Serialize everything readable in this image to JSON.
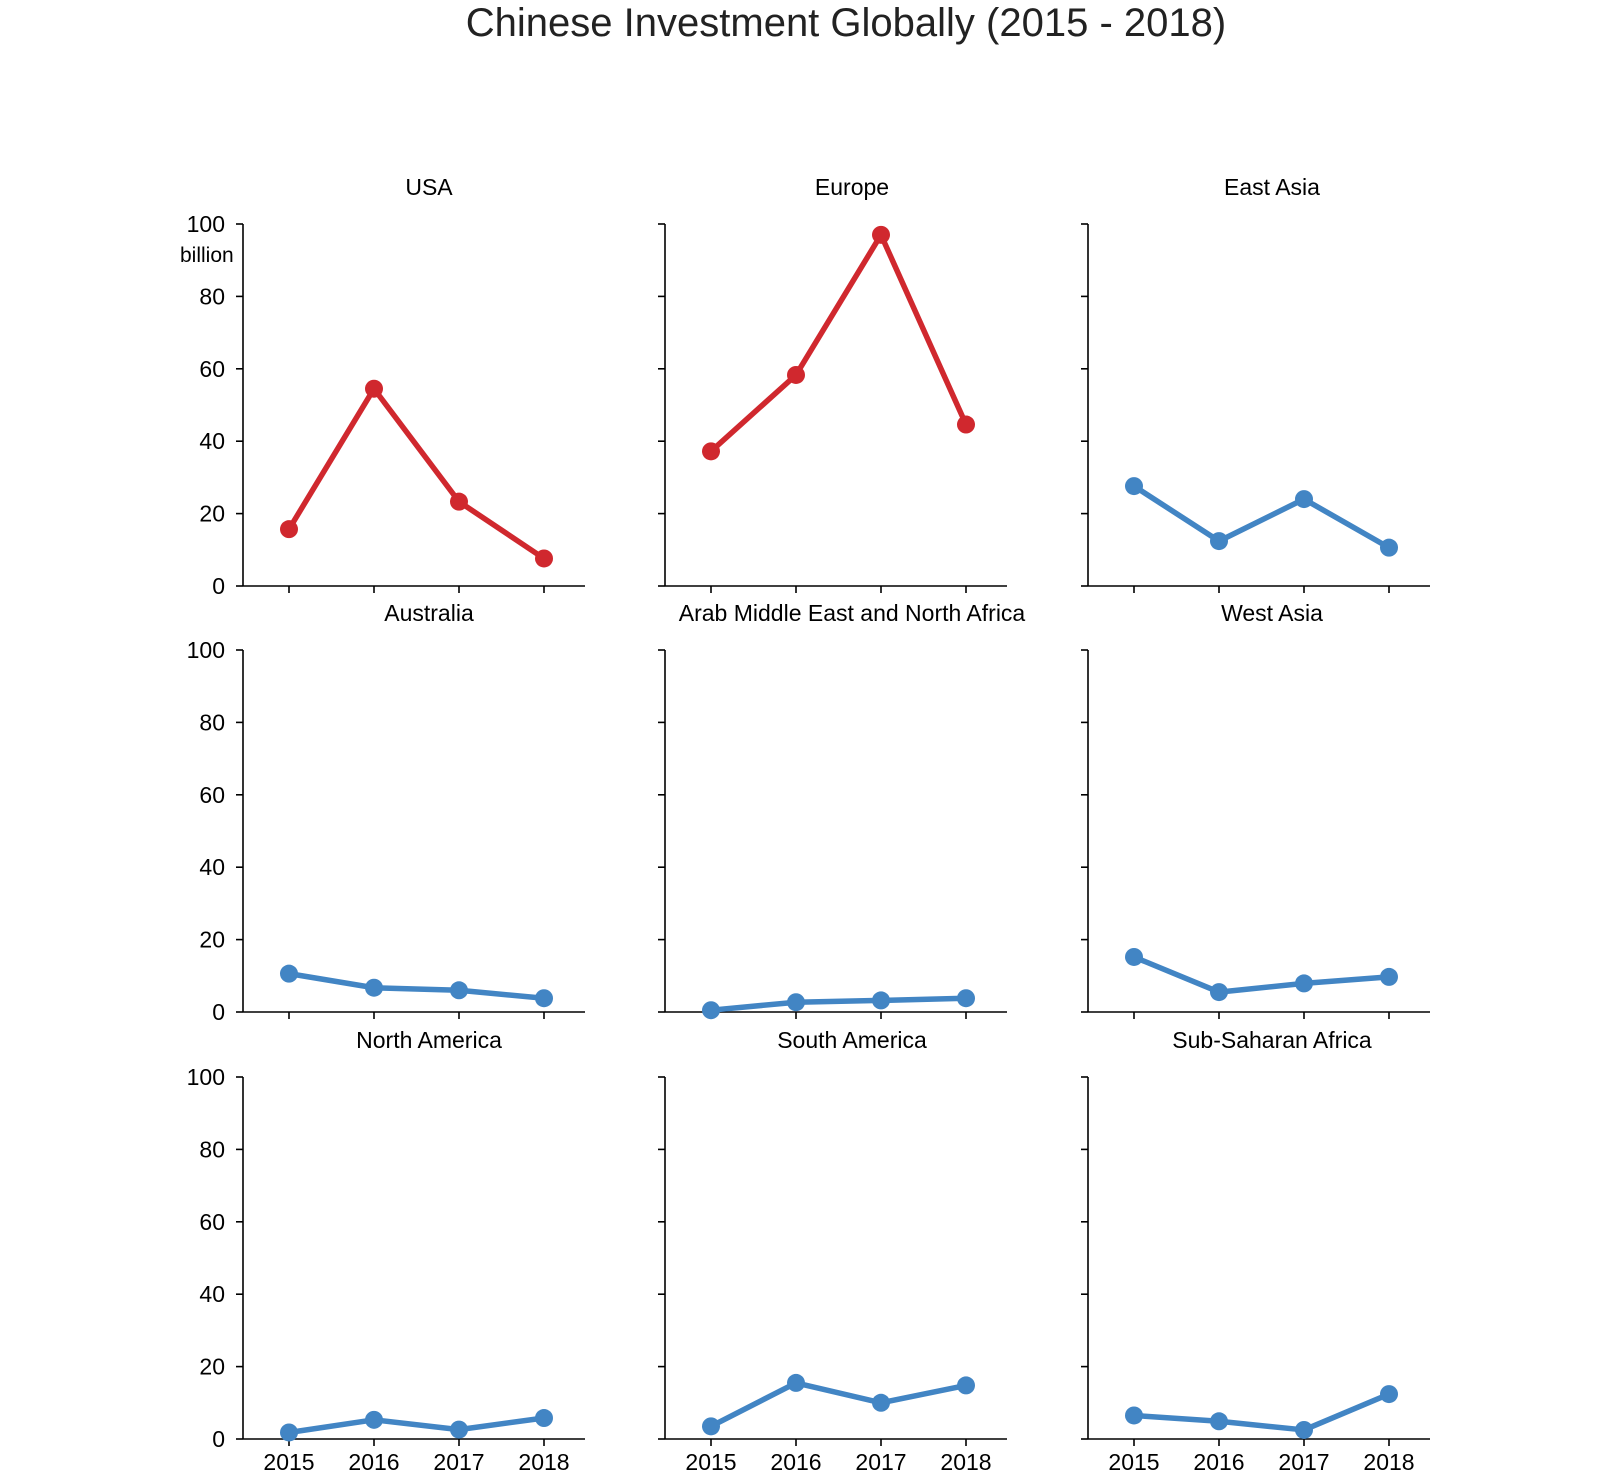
{
  "title": "Chinese Investment Globally (2015 - 2018)",
  "unit_label": "billion",
  "colors": {
    "highlight": "#d0282e",
    "default": "#4285c4",
    "title": "#222222"
  },
  "chart_data": [
    {
      "type": "line",
      "title": "USA",
      "x": [
        "2015",
        "2016",
        "2017",
        "2018"
      ],
      "series": [
        {
          "values": [
            15.7,
            54.5,
            23.3,
            7.6
          ]
        }
      ],
      "color": "#d0282e",
      "ylim": [
        0,
        100
      ],
      "yticks": [
        0,
        20,
        40,
        60,
        80,
        100
      ]
    },
    {
      "type": "line",
      "title": "Europe",
      "x": [
        "2015",
        "2016",
        "2017",
        "2018"
      ],
      "series": [
        {
          "values": [
            37.2,
            58.3,
            97.0,
            44.6
          ]
        }
      ],
      "color": "#d0282e",
      "ylim": [
        0,
        100
      ],
      "yticks": [
        0,
        20,
        40,
        60,
        80,
        100
      ]
    },
    {
      "type": "line",
      "title": "East Asia",
      "x": [
        "2015",
        "2016",
        "2017",
        "2018"
      ],
      "series": [
        {
          "values": [
            27.6,
            12.4,
            24.0,
            10.6
          ]
        }
      ],
      "color": "#4285c4",
      "ylim": [
        0,
        100
      ],
      "yticks": [
        0,
        20,
        40,
        60,
        80,
        100
      ]
    },
    {
      "type": "line",
      "title": "Australia",
      "x": [
        "2015",
        "2016",
        "2017",
        "2018"
      ],
      "series": [
        {
          "values": [
            10.6,
            6.7,
            6.0,
            3.8
          ]
        }
      ],
      "color": "#4285c4",
      "ylim": [
        0,
        100
      ],
      "yticks": [
        0,
        20,
        40,
        60,
        80,
        100
      ]
    },
    {
      "type": "line",
      "title": "Arab Middle East and North Africa",
      "x": [
        "2015",
        "2016",
        "2017",
        "2018"
      ],
      "series": [
        {
          "values": [
            0.5,
            2.7,
            3.2,
            3.8
          ]
        }
      ],
      "color": "#4285c4",
      "ylim": [
        0,
        100
      ],
      "yticks": [
        0,
        20,
        40,
        60,
        80,
        100
      ]
    },
    {
      "type": "line",
      "title": "West Asia",
      "x": [
        "2015",
        "2016",
        "2017",
        "2018"
      ],
      "series": [
        {
          "values": [
            15.2,
            5.5,
            7.9,
            9.7
          ]
        }
      ],
      "color": "#4285c4",
      "ylim": [
        0,
        100
      ],
      "yticks": [
        0,
        20,
        40,
        60,
        80,
        100
      ]
    },
    {
      "type": "line",
      "title": "North America",
      "x": [
        "2015",
        "2016",
        "2017",
        "2018"
      ],
      "series": [
        {
          "values": [
            1.8,
            5.3,
            2.6,
            5.8
          ]
        }
      ],
      "color": "#4285c4",
      "ylim": [
        0,
        100
      ],
      "yticks": [
        0,
        20,
        40,
        60,
        80,
        100
      ]
    },
    {
      "type": "line",
      "title": "South America",
      "x": [
        "2015",
        "2016",
        "2017",
        "2018"
      ],
      "series": [
        {
          "values": [
            3.5,
            15.5,
            10.0,
            14.8
          ]
        }
      ],
      "color": "#4285c4",
      "ylim": [
        0,
        100
      ],
      "yticks": [
        0,
        20,
        40,
        60,
        80,
        100
      ]
    },
    {
      "type": "line",
      "title": "Sub-Saharan Africa",
      "x": [
        "2015",
        "2016",
        "2017",
        "2018"
      ],
      "series": [
        {
          "values": [
            6.5,
            4.9,
            2.5,
            12.4
          ]
        }
      ],
      "color": "#4285c4",
      "ylim": [
        0,
        100
      ],
      "yticks": [
        0,
        20,
        40,
        60,
        80,
        100
      ]
    }
  ]
}
